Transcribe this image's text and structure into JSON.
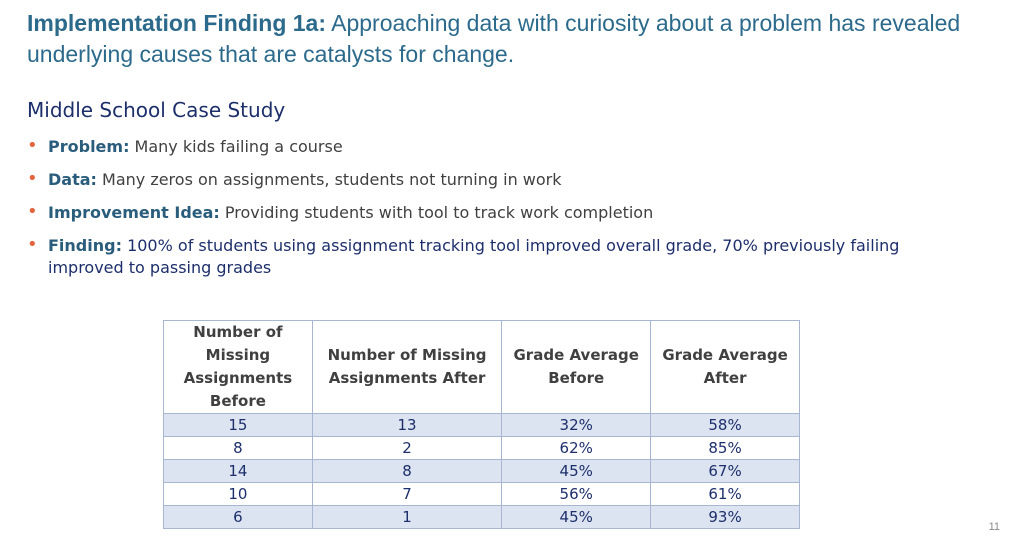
{
  "title": {
    "bold": "Implementation Finding 1a:",
    "text": " Approaching data with curiosity about a problem has revealed underlying causes that are catalysts for change."
  },
  "subtitle": "Middle School Case Study",
  "bullets": [
    {
      "label": "Problem:",
      "text": " Many kids failing a course"
    },
    {
      "label": "Data:",
      "text": " Many zeros on assignments, students not turning in work"
    },
    {
      "label": "Improvement Idea:",
      "text": " Providing students with tool to track work completion"
    },
    {
      "label": "Finding:",
      "text": " 100% of students using assignment tracking tool improved overall grade, 70% previously failing improved to passing grades"
    }
  ],
  "table": {
    "headers": [
      "Number of Missing Assignments Before",
      "Number of Missing Assignments After",
      "Grade Average Before",
      "Grade Average After"
    ],
    "rows": [
      [
        "15",
        "13",
        "32%",
        "58%"
      ],
      [
        "8",
        "2",
        "62%",
        "85%"
      ],
      [
        "14",
        "8",
        "45%",
        "67%"
      ],
      [
        "10",
        "7",
        "56%",
        "61%"
      ],
      [
        "6",
        "1",
        "45%",
        "93%"
      ]
    ]
  },
  "page_number": "11",
  "colors": {
    "title": "#2c6a8c",
    "bullet_dot": "#e2653f",
    "label": "#2a5d7c",
    "navy_text": "#1d2f6b",
    "row_shade": "#dce3f1"
  }
}
